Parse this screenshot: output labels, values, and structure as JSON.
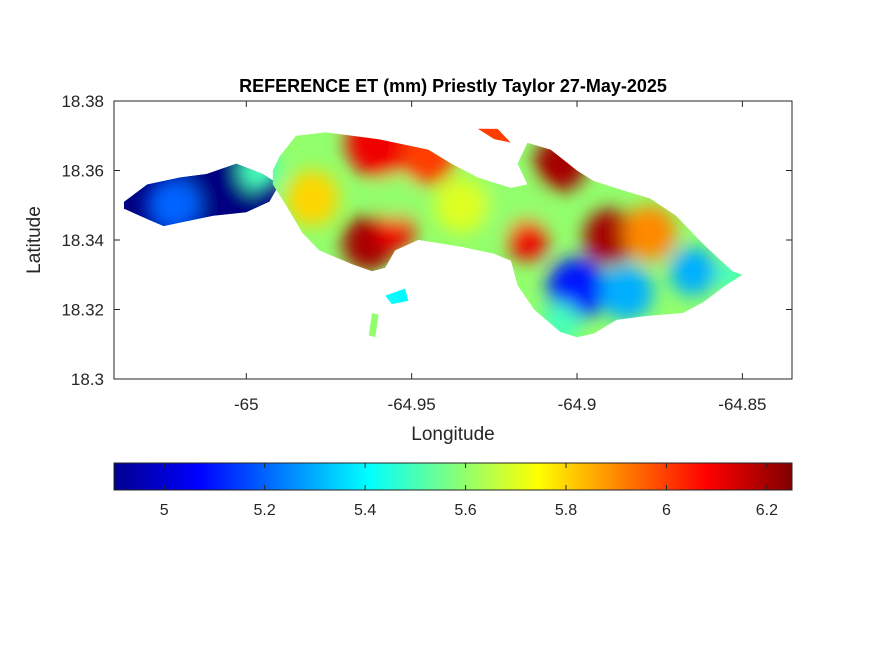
{
  "chart_data": {
    "type": "heatmap",
    "title": "REFERENCE ET (mm) Priestly Taylor 27-May-2025",
    "xlabel": "Longitude",
    "ylabel": "Latitude",
    "xlim": [
      -65.04,
      -64.835
    ],
    "ylim": [
      18.3,
      18.38
    ],
    "xticks": [
      -65,
      -64.95,
      -64.9,
      -64.85
    ],
    "xtick_labels": [
      "-65",
      "-64.95",
      "-64.9",
      "-64.85"
    ],
    "yticks": [
      18.3,
      18.32,
      18.34,
      18.36,
      18.38
    ],
    "ytick_labels": [
      "18.3",
      "18.32",
      "18.34",
      "18.36",
      "18.38"
    ],
    "grid": false,
    "colorbar": {
      "orientation": "horizontal",
      "colormap": "jet",
      "range": [
        4.9,
        6.25
      ],
      "ticks": [
        5,
        5.2,
        5.4,
        5.6,
        5.8,
        6,
        6.2
      ],
      "tick_labels": [
        "5",
        "5.2",
        "5.4",
        "5.6",
        "5.8",
        "6",
        "6.2"
      ]
    },
    "regions": [
      {
        "outline": [
          [
            -65.037,
            18.351
          ],
          [
            -65.03,
            18.356
          ],
          [
            -65.02,
            18.358
          ],
          [
            -65.012,
            18.359
          ],
          [
            -65.003,
            18.362
          ],
          [
            -64.995,
            18.359
          ],
          [
            -64.99,
            18.356
          ],
          [
            -64.993,
            18.351
          ],
          [
            -65.0,
            18.348
          ],
          [
            -65.01,
            18.347
          ],
          [
            -65.02,
            18.345
          ],
          [
            -65.025,
            18.344
          ],
          [
            -65.03,
            18.346
          ],
          [
            -65.037,
            18.349
          ]
        ]
      },
      {
        "outline": [
          [
            -64.99,
            18.364
          ],
          [
            -64.985,
            18.37
          ],
          [
            -64.976,
            18.371
          ],
          [
            -64.96,
            18.369
          ],
          [
            -64.945,
            18.366
          ],
          [
            -64.938,
            18.362
          ],
          [
            -64.93,
            18.358
          ],
          [
            -64.925,
            18.3565
          ],
          [
            -64.92,
            18.355
          ],
          [
            -64.915,
            18.356
          ],
          [
            -64.918,
            18.362
          ],
          [
            -64.915,
            18.368
          ],
          [
            -64.908,
            18.366
          ],
          [
            -64.9,
            18.36
          ],
          [
            -64.895,
            18.357
          ],
          [
            -64.885,
            18.354
          ],
          [
            -64.878,
            18.352
          ],
          [
            -64.87,
            18.347
          ],
          [
            -64.862,
            18.339
          ],
          [
            -64.853,
            18.331
          ],
          [
            -64.85,
            18.33
          ],
          [
            -64.855,
            18.327
          ],
          [
            -64.862,
            18.322
          ],
          [
            -64.868,
            18.319
          ],
          [
            -64.88,
            18.318
          ],
          [
            -64.888,
            18.317
          ],
          [
            -64.895,
            18.313
          ],
          [
            -64.9,
            18.312
          ],
          [
            -64.905,
            18.3135
          ],
          [
            -64.913,
            18.32
          ],
          [
            -64.918,
            18.327
          ],
          [
            -64.92,
            18.334
          ],
          [
            -64.925,
            18.336
          ],
          [
            -64.935,
            18.338
          ],
          [
            -64.948,
            18.34
          ],
          [
            -64.955,
            18.337
          ],
          [
            -64.958,
            18.332
          ],
          [
            -64.962,
            18.331
          ],
          [
            -64.968,
            18.333
          ],
          [
            -64.973,
            18.335
          ],
          [
            -64.978,
            18.337
          ],
          [
            -64.983,
            18.342
          ],
          [
            -64.988,
            18.35
          ],
          [
            -64.992,
            18.356
          ],
          [
            -64.992,
            18.36
          ]
        ]
      },
      {
        "outline": [
          [
            -64.93,
            18.372
          ],
          [
            -64.924,
            18.372
          ],
          [
            -64.92,
            18.368
          ],
          [
            -64.925,
            18.369
          ]
        ]
      },
      {
        "outline": [
          [
            -64.958,
            18.324
          ],
          [
            -64.952,
            18.326
          ],
          [
            -64.951,
            18.3225
          ],
          [
            -64.956,
            18.3215
          ]
        ]
      },
      {
        "outline": [
          [
            -64.962,
            18.319
          ],
          [
            -64.96,
            18.3185
          ],
          [
            -64.961,
            18.312
          ],
          [
            -64.963,
            18.3125
          ]
        ]
      }
    ],
    "hotspots": [
      {
        "lon": -65.008,
        "lat": 18.355,
        "value": 4.9,
        "spread": 0.012
      },
      {
        "lon": -65.022,
        "lat": 18.35,
        "value": 5.2,
        "spread": 0.008
      },
      {
        "lon": -64.996,
        "lat": 18.36,
        "value": 5.5,
        "spread": 0.006
      },
      {
        "lon": -64.98,
        "lat": 18.352,
        "value": 5.8,
        "spread": 0.008
      },
      {
        "lon": -64.96,
        "lat": 18.368,
        "value": 6.1,
        "spread": 0.01
      },
      {
        "lon": -64.945,
        "lat": 18.364,
        "value": 6.0,
        "spread": 0.008
      },
      {
        "lon": -64.963,
        "lat": 18.339,
        "value": 6.2,
        "spread": 0.008
      },
      {
        "lon": -64.955,
        "lat": 18.343,
        "value": 6.1,
        "spread": 0.006
      },
      {
        "lon": -64.955,
        "lat": 18.352,
        "value": 5.6,
        "spread": 0.006
      },
      {
        "lon": -64.935,
        "lat": 18.35,
        "value": 5.7,
        "spread": 0.008
      },
      {
        "lon": -64.918,
        "lat": 18.349,
        "value": 5.6,
        "spread": 0.008
      },
      {
        "lon": -64.905,
        "lat": 18.362,
        "value": 6.2,
        "spread": 0.008
      },
      {
        "lon": -64.915,
        "lat": 18.34,
        "value": 6.1,
        "spread": 0.006
      },
      {
        "lon": -64.89,
        "lat": 18.341,
        "value": 6.2,
        "spread": 0.008
      },
      {
        "lon": -64.878,
        "lat": 18.342,
        "value": 5.9,
        "spread": 0.008
      },
      {
        "lon": -64.9,
        "lat": 18.326,
        "value": 5.1,
        "spread": 0.009
      },
      {
        "lon": -64.885,
        "lat": 18.325,
        "value": 5.3,
        "spread": 0.008
      },
      {
        "lon": -64.905,
        "lat": 18.316,
        "value": 5.5,
        "spread": 0.006
      },
      {
        "lon": -64.865,
        "lat": 18.331,
        "value": 5.3,
        "spread": 0.007
      },
      {
        "lon": -64.853,
        "lat": 18.33,
        "value": 5.5,
        "spread": 0.005
      },
      {
        "lon": -64.93,
        "lat": 18.37,
        "value": 6.0,
        "spread": 0.004
      },
      {
        "lon": -64.954,
        "lat": 18.324,
        "value": 5.4,
        "spread": 0.004
      },
      {
        "lon": -64.961,
        "lat": 18.316,
        "value": 5.6,
        "spread": 0.004
      }
    ]
  }
}
